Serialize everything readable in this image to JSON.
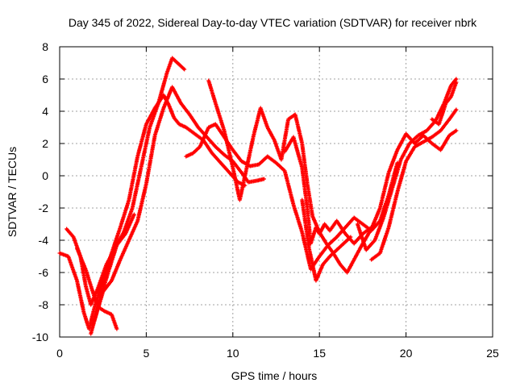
{
  "chart_data": {
    "type": "scatter",
    "title": "Day 345 of 2022, Sidereal Day-to-day VTEC variation (SDTVAR) for receiver nbrk",
    "xlabel": "GPS time / hours",
    "ylabel": "SDTVAR / TECUs",
    "xlim": [
      0,
      25
    ],
    "ylim": [
      -10,
      8
    ],
    "xticks": [
      "0",
      "5",
      "10",
      "15",
      "20",
      "25"
    ],
    "yticks": [
      "-10",
      "-8",
      "-6",
      "-4",
      "-2",
      "0",
      "2",
      "4",
      "6",
      "8"
    ],
    "grid": true,
    "marker": "+",
    "color": "#ff0000",
    "series": [
      {
        "name": "track-1",
        "x": [
          0.0,
          0.5,
          1.0,
          1.4,
          1.7,
          2.0,
          2.5,
          3.0,
          3.5,
          4.0,
          4.5,
          5.0,
          5.5,
          6.0,
          6.3,
          6.6,
          6.9,
          7.3,
          7.8,
          8.3,
          8.8,
          9.3,
          9.8,
          10.3,
          10.7
        ],
        "y": [
          -4.8,
          -5.0,
          -6.5,
          -8.5,
          -9.5,
          -8.2,
          -6.5,
          -4.8,
          -3.2,
          -1.5,
          1.2,
          3.2,
          4.2,
          5.0,
          4.4,
          3.6,
          3.2,
          3.0,
          2.6,
          2.2,
          1.4,
          0.8,
          0.2,
          -0.4,
          -0.6
        ]
      },
      {
        "name": "track-2",
        "x": [
          0.4,
          0.8,
          1.2,
          1.5,
          1.8,
          2.2,
          2.7,
          3.2,
          3.7,
          4.2,
          4.7,
          5.2,
          5.7,
          6.2,
          6.5,
          6.9,
          7.2
        ],
        "y": [
          -3.3,
          -3.8,
          -5.0,
          -6.8,
          -8.0,
          -7.0,
          -5.5,
          -4.5,
          -3.5,
          -2.0,
          0.5,
          3.0,
          4.5,
          6.4,
          7.3,
          6.9,
          6.6
        ]
      },
      {
        "name": "track-3",
        "x": [
          1.0,
          1.5,
          2.0,
          2.3,
          2.6,
          3.0,
          3.3
        ],
        "y": [
          -4.5,
          -5.8,
          -7.5,
          -8.2,
          -8.4,
          -8.6,
          -9.5
        ]
      },
      {
        "name": "track-4",
        "x": [
          1.8,
          2.3,
          2.8,
          3.3,
          3.8,
          4.3
        ],
        "y": [
          -9.8,
          -7.8,
          -6.0,
          -4.3,
          -3.6,
          -2.4
        ]
      },
      {
        "name": "track-5",
        "x": [
          2.0,
          2.5,
          3.0,
          3.5,
          4.0,
          4.5,
          5.0,
          5.5,
          6.0,
          6.5,
          7.0,
          7.5,
          8.0,
          8.5,
          9.0,
          9.5,
          10.0,
          10.5,
          10.9,
          11.4,
          11.8
        ],
        "y": [
          -9.0,
          -7.2,
          -6.5,
          -5.2,
          -4.0,
          -2.8,
          -0.5,
          2.5,
          4.2,
          5.5,
          4.5,
          3.8,
          3.0,
          2.4,
          1.8,
          1.3,
          0.9,
          0.2,
          -0.4,
          -0.3,
          -0.2
        ]
      },
      {
        "name": "track-6",
        "x": [
          7.3,
          7.7,
          8.1,
          8.6,
          9.0,
          9.5,
          10.0,
          10.5,
          11.0,
          11.5,
          12.0,
          12.5,
          13.0,
          13.5,
          14.0,
          14.5,
          15.0,
          15.5,
          16.0,
          16.5,
          17.0,
          17.5,
          18.0,
          18.5,
          19.0,
          19.5
        ],
        "y": [
          1.2,
          1.4,
          1.8,
          3.0,
          3.2,
          2.4,
          1.6,
          0.9,
          0.6,
          0.7,
          1.2,
          0.8,
          0.3,
          -1.8,
          -3.5,
          -5.8,
          -5.0,
          -4.3,
          -3.8,
          -3.2,
          -2.6,
          -3.0,
          -3.4,
          -2.8,
          -1.2,
          0.8
        ]
      },
      {
        "name": "track-7",
        "x": [
          8.6,
          9.0,
          9.5,
          10.0,
          10.4,
          10.8,
          11.2,
          11.6,
          12.0,
          12.4,
          12.8,
          13.2,
          13.6,
          14.0,
          14.3,
          14.6,
          15.0,
          15.4,
          15.8,
          16.2,
          16.6,
          17.0,
          17.5,
          18.0,
          18.5,
          19.0,
          19.5,
          20.0,
          20.5,
          21.0,
          21.5,
          22.0,
          22.5,
          22.9
        ],
        "y": [
          5.9,
          4.5,
          2.8,
          0.5,
          -1.5,
          0.5,
          2.5,
          4.2,
          3.0,
          2.2,
          1.0,
          3.5,
          3.8,
          2.0,
          -0.5,
          -2.5,
          -3.5,
          -4.2,
          -4.8,
          -5.5,
          -6.0,
          -5.2,
          -4.2,
          -3.3,
          -2.0,
          0.2,
          1.6,
          2.6,
          2.0,
          2.5,
          2.0,
          1.6,
          2.5,
          2.8
        ]
      },
      {
        "name": "track-8",
        "x": [
          13.0,
          13.5,
          14.0,
          14.3,
          14.5,
          14.8,
          15.0,
          15.3,
          15.6,
          16.0,
          16.5,
          17.0,
          17.5,
          18.0
        ],
        "y": [
          1.5,
          2.4,
          0.5,
          -2.0,
          -4.2,
          -3.2,
          -3.6,
          -3.0,
          -3.4,
          -2.8,
          -3.6,
          -4.2,
          -3.6,
          -3.2
        ]
      },
      {
        "name": "track-9",
        "x": [
          14.0,
          14.4,
          14.8,
          15.2,
          15.6,
          16.0,
          16.4,
          16.8
        ],
        "y": [
          -1.5,
          -4.5,
          -6.5,
          -5.5,
          -5.0,
          -4.6,
          -4.2,
          -3.8
        ]
      },
      {
        "name": "track-10",
        "x": [
          17.2,
          17.7,
          18.2,
          18.7,
          19.2,
          19.7,
          20.2,
          20.7,
          21.2,
          21.7,
          22.2,
          22.6,
          22.9
        ],
        "y": [
          -3.0,
          -4.6,
          -4.0,
          -2.6,
          -0.8,
          1.0,
          2.0,
          2.5,
          2.8,
          3.4,
          4.5,
          5.6,
          6.0
        ]
      },
      {
        "name": "track-11",
        "x": [
          18.0,
          18.5,
          19.0,
          19.5,
          20.0,
          20.5,
          21.0,
          21.5,
          22.0,
          22.5,
          22.9
        ],
        "y": [
          -5.2,
          -4.8,
          -3.2,
          -1.0,
          0.9,
          1.8,
          2.1,
          2.4,
          2.8,
          3.5,
          4.1
        ]
      },
      {
        "name": "track-12",
        "x": [
          21.5,
          21.9,
          22.3,
          22.6,
          22.9
        ],
        "y": [
          3.5,
          3.2,
          4.5,
          4.9,
          5.8
        ]
      }
    ]
  }
}
